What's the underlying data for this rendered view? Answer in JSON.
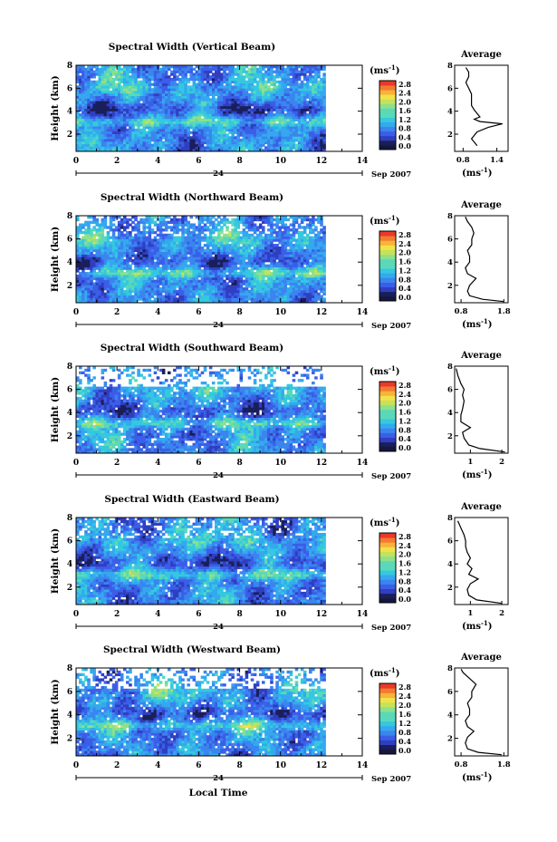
{
  "figure": {
    "xlabel": "Local Time",
    "date_day": "24",
    "date_month": "Sep 2007",
    "ylabel": "Height (km)",
    "unit_label": "(ms",
    "unit_exp": "-1",
    "avg_title": "Average",
    "avg_xlabel": "(ms",
    "colormap": [
      "#1a1f5a",
      "#2f3fc0",
      "#3b5ee8",
      "#3a85ee",
      "#35a8ee",
      "#35c8e0",
      "#5ad9b8",
      "#8fe08a",
      "#c5e25a",
      "#f3e14a",
      "#f7b33a",
      "#f47a30",
      "#e83a28"
    ]
  },
  "chart_data": [
    {
      "type": "heatmap",
      "title": "Spectral Width (Vertical Beam)",
      "x_ticks": [
        "0",
        "2",
        "4",
        "6",
        "8",
        "10",
        "12",
        "14"
      ],
      "xlim": [
        0,
        14
      ],
      "data_xmax": 12.2,
      "y_ticks": [
        "2",
        "4",
        "6",
        "8"
      ],
      "ylim": [
        0.5,
        8
      ],
      "colorbar_ticks": [
        "0.0",
        "0.4",
        "0.8",
        "1.2",
        "1.6",
        "2.0",
        "2.4",
        "2.8"
      ],
      "gaps": 0.03,
      "average": {
        "x_ticks": [
          "0.8",
          "1.4"
        ],
        "xlim": [
          0.65,
          1.6
        ],
        "profile": [
          [
            1.05,
            1.0
          ],
          [
            1.0,
            1.3
          ],
          [
            0.95,
            1.6
          ],
          [
            1.0,
            1.9
          ],
          [
            1.05,
            2.2
          ],
          [
            1.25,
            2.6
          ],
          [
            1.5,
            2.9
          ],
          [
            1.1,
            3.1
          ],
          [
            1.0,
            3.3
          ],
          [
            1.1,
            3.5
          ],
          [
            1.05,
            3.8
          ],
          [
            1.0,
            4.1
          ],
          [
            0.95,
            4.5
          ],
          [
            0.95,
            5.0
          ],
          [
            0.95,
            5.5
          ],
          [
            0.9,
            6.0
          ],
          [
            0.85,
            6.5
          ],
          [
            0.9,
            7.0
          ],
          [
            0.9,
            7.4
          ],
          [
            0.85,
            7.8
          ]
        ]
      }
    },
    {
      "type": "heatmap",
      "title": "Spectral Width (Northward Beam)",
      "x_ticks": [
        "0",
        "2",
        "4",
        "6",
        "8",
        "10",
        "12",
        "14"
      ],
      "xlim": [
        0,
        14
      ],
      "data_xmax": 12.2,
      "y_ticks": [
        "2",
        "4",
        "6",
        "8"
      ],
      "ylim": [
        0.5,
        8
      ],
      "colorbar_ticks": [
        "0.0",
        "0.4",
        "0.8",
        "1.2",
        "1.6",
        "2.0",
        "2.4",
        "2.8"
      ],
      "gaps": 0.08,
      "average": {
        "x_ticks": [
          "0.8",
          "1.8"
        ],
        "xlim": [
          0.65,
          1.9
        ],
        "profile": [
          [
            1.8,
            0.6
          ],
          [
            1.3,
            0.8
          ],
          [
            1.0,
            1.1
          ],
          [
            0.95,
            1.5
          ],
          [
            1.0,
            2.0
          ],
          [
            1.15,
            2.6
          ],
          [
            0.95,
            3.0
          ],
          [
            0.9,
            3.5
          ],
          [
            1.0,
            4.0
          ],
          [
            1.0,
            4.5
          ],
          [
            0.95,
            5.0
          ],
          [
            1.05,
            5.5
          ],
          [
            1.05,
            6.0
          ],
          [
            1.1,
            6.5
          ],
          [
            1.05,
            7.0
          ],
          [
            0.95,
            7.5
          ],
          [
            0.9,
            7.9
          ]
        ]
      }
    },
    {
      "type": "heatmap",
      "title": "Spectral Width (Southward Beam)",
      "x_ticks": [
        "0",
        "2",
        "4",
        "6",
        "8",
        "10",
        "12",
        "14"
      ],
      "xlim": [
        0,
        14
      ],
      "data_xmax": 12.2,
      "y_ticks": [
        "2",
        "4",
        "6",
        "8"
      ],
      "ylim": [
        0.5,
        8
      ],
      "colorbar_ticks": [
        "0.0",
        "0.4",
        "0.8",
        "1.2",
        "1.6",
        "2.0",
        "2.4",
        "2.8"
      ],
      "gaps": 0.2,
      "average": {
        "x_ticks": [
          "1",
          "2"
        ],
        "xlim": [
          0.5,
          2.2
        ],
        "profile": [
          [
            2.1,
            0.6
          ],
          [
            1.3,
            0.9
          ],
          [
            0.95,
            1.2
          ],
          [
            0.8,
            1.8
          ],
          [
            0.75,
            2.3
          ],
          [
            1.0,
            2.7
          ],
          [
            0.7,
            3.2
          ],
          [
            0.7,
            3.8
          ],
          [
            0.75,
            4.3
          ],
          [
            0.8,
            5.0
          ],
          [
            0.75,
            5.5
          ],
          [
            0.8,
            6.0
          ],
          [
            0.7,
            6.5
          ],
          [
            0.6,
            7.2
          ],
          [
            0.55,
            7.8
          ]
        ]
      }
    },
    {
      "type": "heatmap",
      "title": "Spectral Width (Eastward Beam)",
      "x_ticks": [
        "0",
        "2",
        "4",
        "6",
        "8",
        "10",
        "12",
        "14"
      ],
      "xlim": [
        0,
        14
      ],
      "data_xmax": 12.2,
      "y_ticks": [
        "2",
        "4",
        "6",
        "8"
      ],
      "ylim": [
        0.5,
        8
      ],
      "colorbar_ticks": [
        "0.0",
        "0.4",
        "0.8",
        "1.2",
        "1.6",
        "2.0",
        "2.4",
        "2.8"
      ],
      "gaps": 0.07,
      "average": {
        "x_ticks": [
          "1",
          "2"
        ],
        "xlim": [
          0.5,
          2.2
        ],
        "profile": [
          [
            2.0,
            0.6
          ],
          [
            1.2,
            0.9
          ],
          [
            0.95,
            1.3
          ],
          [
            0.9,
            1.8
          ],
          [
            1.0,
            2.3
          ],
          [
            1.25,
            2.7
          ],
          [
            0.95,
            3.1
          ],
          [
            1.05,
            3.6
          ],
          [
            0.9,
            4.0
          ],
          [
            1.0,
            4.5
          ],
          [
            0.9,
            5.0
          ],
          [
            0.85,
            5.5
          ],
          [
            0.85,
            6.0
          ],
          [
            0.8,
            6.5
          ],
          [
            0.7,
            7.1
          ],
          [
            0.6,
            7.7
          ]
        ]
      }
    },
    {
      "type": "heatmap",
      "title": "Spectral Width (Westward Beam)",
      "x_ticks": [
        "0",
        "2",
        "4",
        "6",
        "8",
        "10",
        "12",
        "14"
      ],
      "xlim": [
        0,
        14
      ],
      "data_xmax": 12.2,
      "y_ticks": [
        "2",
        "4",
        "6",
        "8"
      ],
      "ylim": [
        0.5,
        8
      ],
      "colorbar_ticks": [
        "0.0",
        "0.4",
        "0.8",
        "1.2",
        "1.6",
        "2.0",
        "2.4",
        "2.8"
      ],
      "gaps": 0.18,
      "average": {
        "x_ticks": [
          "0.8",
          "1.8"
        ],
        "xlim": [
          0.65,
          1.9
        ],
        "profile": [
          [
            1.75,
            0.6
          ],
          [
            1.2,
            0.8
          ],
          [
            0.95,
            1.1
          ],
          [
            0.9,
            1.6
          ],
          [
            0.95,
            2.1
          ],
          [
            1.1,
            2.6
          ],
          [
            0.95,
            3.0
          ],
          [
            0.9,
            3.5
          ],
          [
            1.0,
            4.0
          ],
          [
            1.0,
            4.5
          ],
          [
            0.95,
            5.0
          ],
          [
            1.05,
            5.5
          ],
          [
            1.05,
            6.0
          ],
          [
            1.15,
            6.6
          ],
          [
            1.0,
            7.1
          ],
          [
            0.85,
            7.6
          ],
          [
            0.8,
            7.9
          ]
        ]
      }
    }
  ]
}
